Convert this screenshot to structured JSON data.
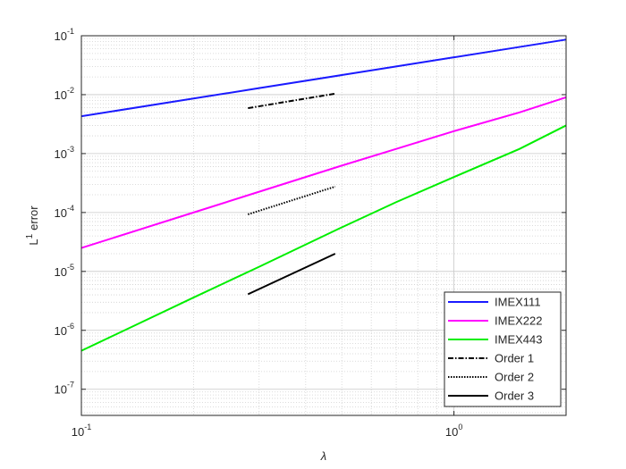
{
  "chart_data": {
    "type": "line",
    "x_label": "λ",
    "y_label": "L",
    "y_label_sup": "1",
    "y_label_rest": "error",
    "x": [
      0.1,
      0.2,
      0.3,
      0.5,
      0.7,
      1.0,
      1.5,
      2.0
    ],
    "series": [
      {
        "name": "IMEX111",
        "color": "#1a1aff",
        "dash": "solid",
        "values": [
          0.0043,
          0.0086,
          0.0129,
          0.0215,
          0.0301,
          0.043,
          0.0645,
          0.086
        ]
      },
      {
        "name": "IMEX222",
        "color": "#ff00ff",
        "dash": "solid",
        "values": [
          2.5e-05,
          0.0001,
          0.000225,
          0.000625,
          0.0012,
          0.0024,
          0.005,
          0.009
        ]
      },
      {
        "name": "IMEX443",
        "color": "#00ee00",
        "dash": "solid",
        "values": [
          4.5e-07,
          3.6e-06,
          1.2e-05,
          5.6e-05,
          0.00015,
          0.0004,
          0.0012,
          0.003
        ]
      },
      {
        "name": "Order 1",
        "color": "#000000",
        "dash": "dashdot",
        "x": [
          0.28,
          0.48
        ],
        "values": [
          0.0059,
          0.0104
        ]
      },
      {
        "name": "Order 2",
        "color": "#000000",
        "dash": "dotted",
        "x": [
          0.28,
          0.48
        ],
        "values": [
          9.3e-05,
          0.000275
        ]
      },
      {
        "name": "Order 3",
        "color": "#000000",
        "dash": "solid",
        "x": [
          0.28,
          0.48
        ],
        "values": [
          4.1e-06,
          2e-05
        ]
      }
    ],
    "log_x": true,
    "log_y": true,
    "xlim": [
      0.1,
      2
    ],
    "ylim": [
      3.6e-08,
      0.1
    ],
    "xticks": [
      {
        "value": 0.1,
        "label": "10",
        "exponent": "-1"
      },
      {
        "value": 1,
        "label": "10",
        "exponent": "0"
      }
    ],
    "yticks": [
      {
        "value": 1e-07,
        "label": "10",
        "exponent": "-7"
      },
      {
        "value": 1e-06,
        "label": "10",
        "exponent": "-6"
      },
      {
        "value": 1e-05,
        "label": "10",
        "exponent": "-5"
      },
      {
        "value": 0.0001,
        "label": "10",
        "exponent": "-4"
      },
      {
        "value": 0.001,
        "label": "10",
        "exponent": "-3"
      },
      {
        "value": 0.01,
        "label": "10",
        "exponent": "-2"
      },
      {
        "value": 0.1,
        "label": "10",
        "exponent": "-1"
      }
    ],
    "grid": true,
    "minor_grid": true,
    "legend": "southeast"
  }
}
